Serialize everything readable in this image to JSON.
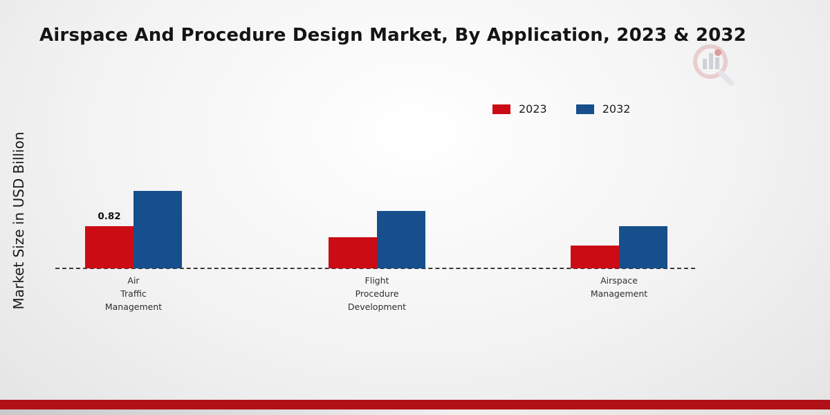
{
  "header": {
    "title": "Airspace And Procedure Design Market, By Application, 2023 & 2032"
  },
  "axes": {
    "ylabel": "Market Size in USD Billion"
  },
  "chart_data": {
    "type": "bar",
    "title": "Airspace And Procedure Design Market, By Application, 2023 & 2032",
    "ylabel": "Market Size in USD Billion",
    "xlabel": "",
    "baseline_style": "dashed",
    "legend_position": "top-right",
    "categories": [
      "Air Traffic Management",
      "Flight Procedure Development",
      "Airspace Management"
    ],
    "category_lines": [
      [
        "Air",
        "Traffic",
        "Management"
      ],
      [
        "Flight",
        "Procedure",
        "Development"
      ],
      [
        "Airspace",
        "Management"
      ]
    ],
    "series": [
      {
        "name": "2023",
        "color": "#cb0c15",
        "values": [
          0.82,
          0.6,
          0.45
        ],
        "labels": [
          "0.82",
          "",
          ""
        ]
      },
      {
        "name": "2032",
        "color": "#174e8c",
        "values": [
          1.5,
          1.12,
          0.82
        ],
        "labels": [
          "",
          "",
          ""
        ]
      }
    ],
    "ylim": [
      0,
      1.8
    ]
  },
  "footer": {},
  "branding": {
    "logo": "market-research-chart-logo"
  }
}
